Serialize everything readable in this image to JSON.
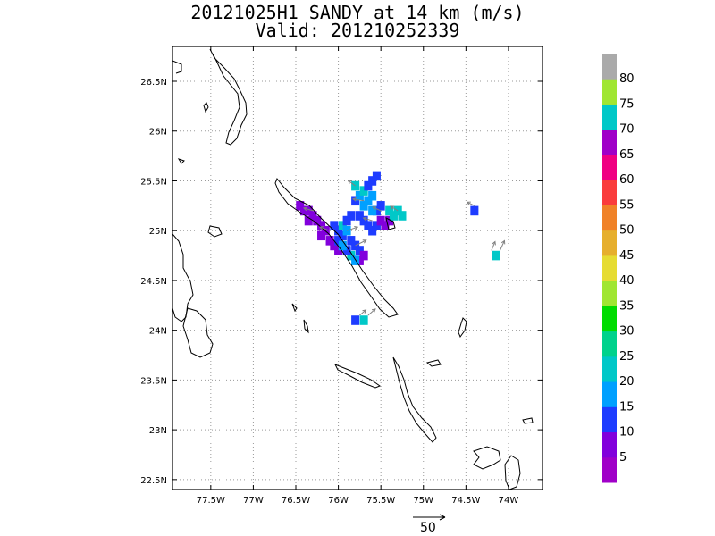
{
  "title": {
    "line1": "20121025H1 SANDY at 14 km (m/s)",
    "line2": "Valid: 201210252339"
  },
  "map": {
    "lon_labels": [
      "77.5W",
      "77W",
      "76.5W",
      "76W",
      "75.5W",
      "75W",
      "74.5W",
      "74W"
    ],
    "lat_labels": [
      "26.5N",
      "26N",
      "25.5N",
      "25N",
      "24.5N",
      "24N",
      "23.5N",
      "23N",
      "22.5N"
    ],
    "grid": true,
    "reference_vector": {
      "label": "50"
    }
  },
  "legend": {
    "labels": [
      "5",
      "10",
      "15",
      "20",
      "25",
      "30",
      "35",
      "40",
      "45",
      "50",
      "55",
      "60",
      "65",
      "70",
      "75",
      "80"
    ],
    "colors": [
      "#a000c8",
      "#8200dc",
      "#1e3cff",
      "#00a0ff",
      "#00c8c8",
      "#00d28c",
      "#00dc00",
      "#a0e632",
      "#e6dc32",
      "#e6af2d",
      "#f08228",
      "#fa3c3c",
      "#f00082",
      "#a000c8",
      "#00c8c8",
      "#a0e632",
      "#aaaaaa"
    ]
  },
  "icons": {
    "vector_arrows": "wind-arrow-icon"
  },
  "chart_data": {
    "type": "heatmap",
    "title": "20121025H1 SANDY at 14 km (m/s)",
    "subtitle": "Valid: 201210252339",
    "xlim": [
      -77.95,
      -73.6
    ],
    "ylim": [
      22.4,
      26.85
    ],
    "cells": [
      {
        "lon": -76.45,
        "lat": 25.25,
        "v": 6
      },
      {
        "lon": -76.4,
        "lat": 25.2,
        "v": 5
      },
      {
        "lon": -76.35,
        "lat": 25.2,
        "v": 7
      },
      {
        "lon": -76.3,
        "lat": 25.15,
        "v": 6
      },
      {
        "lon": -76.35,
        "lat": 25.1,
        "v": 5
      },
      {
        "lon": -76.25,
        "lat": 25.1,
        "v": 8
      },
      {
        "lon": -76.2,
        "lat": 25.05,
        "v": 6
      },
      {
        "lon": -76.15,
        "lat": 25.0,
        "v": 7
      },
      {
        "lon": -76.2,
        "lat": 24.95,
        "v": 5
      },
      {
        "lon": -76.1,
        "lat": 24.9,
        "v": 6
      },
      {
        "lon": -76.05,
        "lat": 24.85,
        "v": 8
      },
      {
        "lon": -76.0,
        "lat": 24.8,
        "v": 7
      },
      {
        "lon": -76.05,
        "lat": 25.05,
        "v": 12
      },
      {
        "lon": -76.0,
        "lat": 25.0,
        "v": 14
      },
      {
        "lon": -75.95,
        "lat": 24.95,
        "v": 13
      },
      {
        "lon": -75.95,
        "lat": 25.05,
        "v": 20
      },
      {
        "lon": -75.9,
        "lat": 25.0,
        "v": 15
      },
      {
        "lon": -75.85,
        "lat": 24.9,
        "v": 14
      },
      {
        "lon": -75.8,
        "lat": 24.85,
        "v": 12
      },
      {
        "lon": -75.75,
        "lat": 24.8,
        "v": 11
      },
      {
        "lon": -75.7,
        "lat": 24.75,
        "v": 8
      },
      {
        "lon": -75.75,
        "lat": 24.7,
        "v": 7
      },
      {
        "lon": -75.85,
        "lat": 24.75,
        "v": 21
      },
      {
        "lon": -75.8,
        "lat": 24.7,
        "v": 18
      },
      {
        "lon": -75.9,
        "lat": 24.8,
        "v": 13
      },
      {
        "lon": -76.0,
        "lat": 24.9,
        "v": 11
      },
      {
        "lon": -75.9,
        "lat": 25.1,
        "v": 12
      },
      {
        "lon": -75.85,
        "lat": 25.15,
        "v": 13
      },
      {
        "lon": -75.75,
        "lat": 25.15,
        "v": 11
      },
      {
        "lon": -75.7,
        "lat": 25.1,
        "v": 12
      },
      {
        "lon": -75.65,
        "lat": 25.05,
        "v": 13
      },
      {
        "lon": -75.6,
        "lat": 25.0,
        "v": 11
      },
      {
        "lon": -75.55,
        "lat": 25.05,
        "v": 10
      },
      {
        "lon": -75.5,
        "lat": 25.1,
        "v": 9
      },
      {
        "lon": -75.45,
        "lat": 25.05,
        "v": 7
      },
      {
        "lon": -75.4,
        "lat": 25.1,
        "v": 6
      },
      {
        "lon": -75.8,
        "lat": 25.3,
        "v": 14
      },
      {
        "lon": -75.75,
        "lat": 25.35,
        "v": 19
      },
      {
        "lon": -75.7,
        "lat": 25.4,
        "v": 22
      },
      {
        "lon": -75.65,
        "lat": 25.45,
        "v": 14
      },
      {
        "lon": -75.6,
        "lat": 25.5,
        "v": 13
      },
      {
        "lon": -75.7,
        "lat": 25.25,
        "v": 16
      },
      {
        "lon": -75.65,
        "lat": 25.3,
        "v": 18
      },
      {
        "lon": -75.6,
        "lat": 25.35,
        "v": 15
      },
      {
        "lon": -75.55,
        "lat": 25.2,
        "v": 14
      },
      {
        "lon": -75.5,
        "lat": 25.25,
        "v": 13
      },
      {
        "lon": -75.4,
        "lat": 25.2,
        "v": 22
      },
      {
        "lon": -75.3,
        "lat": 25.2,
        "v": 24
      },
      {
        "lon": -75.35,
        "lat": 25.15,
        "v": 21
      },
      {
        "lon": -75.25,
        "lat": 25.15,
        "v": 23
      },
      {
        "lon": -75.6,
        "lat": 25.2,
        "v": 15
      },
      {
        "lon": -75.8,
        "lat": 25.45,
        "v": 20
      },
      {
        "lon": -75.55,
        "lat": 25.55,
        "v": 12
      },
      {
        "lon": -75.95,
        "lat": 24.85,
        "v": 16
      },
      {
        "lon": -74.4,
        "lat": 25.2,
        "v": 14
      },
      {
        "lon": -74.15,
        "lat": 24.75,
        "v": 24
      },
      {
        "lon": -75.8,
        "lat": 24.1,
        "v": 14
      },
      {
        "lon": -75.7,
        "lat": 24.1,
        "v": 22
      }
    ],
    "vectors": [
      {
        "lon": -76.3,
        "lat": 25.2,
        "u": -10,
        "v": 3
      },
      {
        "lon": -76.1,
        "lat": 25.0,
        "u": -11,
        "v": 4
      },
      {
        "lon": -75.9,
        "lat": 25.0,
        "u": 12,
        "v": 4
      },
      {
        "lon": -75.8,
        "lat": 24.85,
        "u": 12,
        "v": 6
      },
      {
        "lon": -75.7,
        "lat": 25.3,
        "u": -12,
        "v": 2
      },
      {
        "lon": -75.6,
        "lat": 25.1,
        "u": -10,
        "v": 3
      },
      {
        "lon": -75.5,
        "lat": 25.2,
        "u": -9,
        "v": 4
      },
      {
        "lon": -75.8,
        "lat": 25.45,
        "u": -8,
        "v": 6
      },
      {
        "lon": -75.3,
        "lat": 25.2,
        "u": -8,
        "v": 5
      },
      {
        "lon": -74.4,
        "lat": 25.25,
        "u": -8,
        "v": 4
      },
      {
        "lon": -74.2,
        "lat": 24.8,
        "u": 4,
        "v": 10
      },
      {
        "lon": -74.1,
        "lat": 24.8,
        "u": 5,
        "v": 11
      },
      {
        "lon": -75.75,
        "lat": 24.15,
        "u": 7,
        "v": 6
      },
      {
        "lon": -75.65,
        "lat": 24.15,
        "u": 8,
        "v": 7
      }
    ]
  }
}
